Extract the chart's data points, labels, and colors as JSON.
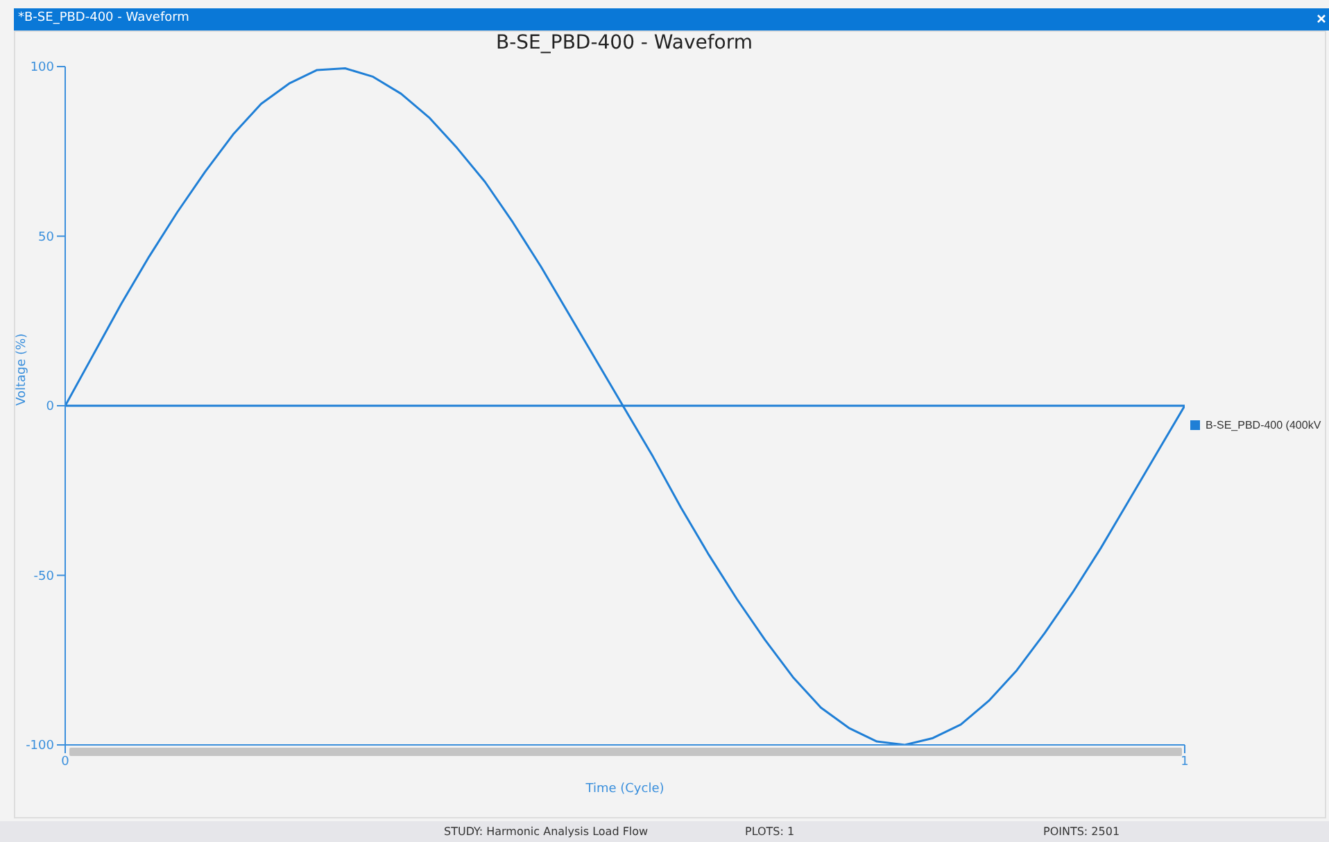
{
  "chart_data": {
    "type": "line",
    "title": "B-SE_PBD-400 - Waveform",
    "xlabel": "Time (Cycle)",
    "ylabel": "Voltage (%)",
    "x": [
      0,
      0.025,
      0.05,
      0.075,
      0.1,
      0.125,
      0.15,
      0.175,
      0.2,
      0.225,
      0.25,
      0.275,
      0.3,
      0.325,
      0.35,
      0.375,
      0.4,
      0.425,
      0.45,
      0.475,
      0.5,
      0.525,
      0.55,
      0.575,
      0.6,
      0.625,
      0.65,
      0.675,
      0.7,
      0.725,
      0.75,
      0.775,
      0.8,
      0.825,
      0.85,
      0.875,
      0.9,
      0.925,
      0.95,
      0.975,
      1
    ],
    "series": [
      {
        "name": "B-SE_PBD-400 (400kV",
        "color": "#1f7fd6",
        "values": [
          0,
          15,
          30,
          44,
          57,
          69,
          80,
          89,
          95,
          99,
          99.5,
          97,
          92,
          85,
          76,
          66,
          54,
          41,
          27,
          13,
          -1,
          -15,
          -30,
          -44,
          -57,
          -69,
          -80,
          -89,
          -95,
          -99,
          -100,
          -98,
          -94,
          -87,
          -78,
          -67,
          -55,
          -42,
          -28,
          -14,
          0
        ]
      }
    ],
    "xlim": [
      0,
      1
    ],
    "xticks": [
      0,
      1
    ],
    "ylim": [
      -100,
      100
    ],
    "yticks": [
      -100,
      -50,
      0,
      50,
      100
    ],
    "ref_lines": [
      {
        "axis": "y",
        "value": 0,
        "color": "#1f7fd6"
      }
    ],
    "grid": false,
    "legend": "right",
    "marker": "none",
    "line_style": "solid",
    "annotations": [
      "*B-SE_PBD-400 - Waveform",
      "STUDY: Harmonic Analysis Load Flow",
      "PLOTS: 1",
      "POINTS: 2501"
    ]
  }
}
